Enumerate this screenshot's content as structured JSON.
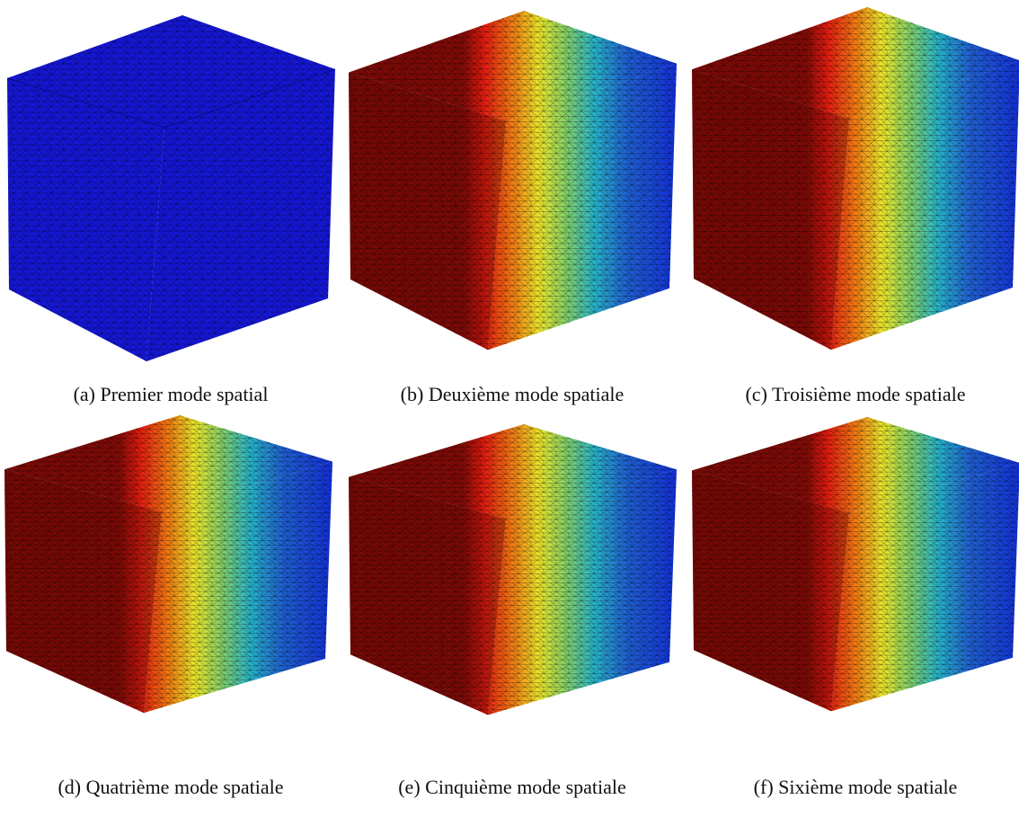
{
  "figures": [
    {
      "caption": "(a) Premier mode spatial"
    },
    {
      "caption": "(b) Deuxième mode spatiale"
    },
    {
      "caption": "(c) Troisième mode spatiale"
    },
    {
      "caption": "(d) Quatrième mode spatiale"
    },
    {
      "caption": "(e) Cinquième mode spatiale"
    },
    {
      "caption": "(f) Sixième mode spatiale"
    }
  ]
}
